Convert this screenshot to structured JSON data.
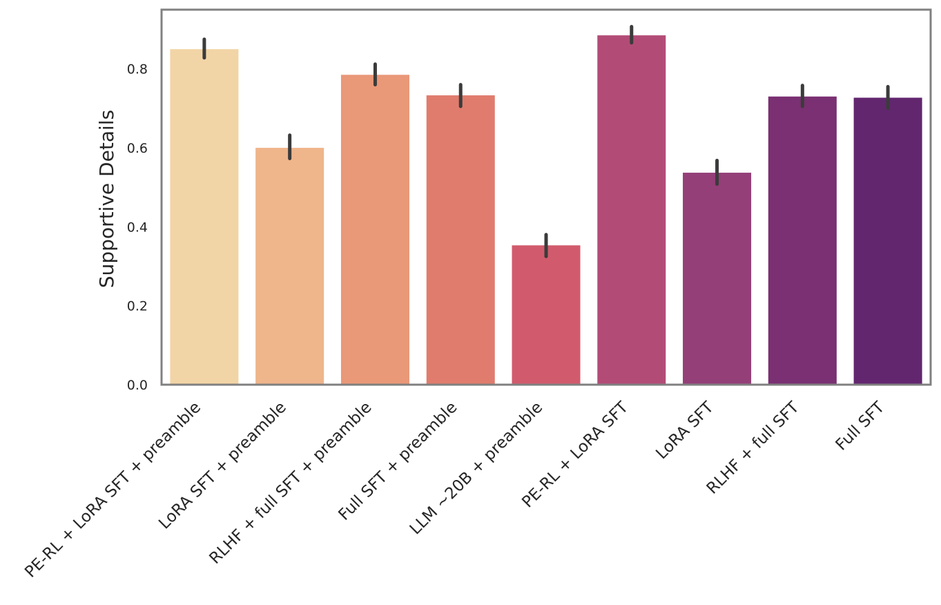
{
  "chart_data": {
    "type": "bar",
    "title": "",
    "xlabel": "",
    "ylabel": "Supportive Details",
    "ylim": [
      0,
      0.95
    ],
    "yticks": [
      0.0,
      0.2,
      0.4,
      0.6,
      0.8
    ],
    "ytick_labels": [
      "0.0",
      "0.2",
      "0.4",
      "0.6",
      "0.8"
    ],
    "grid": false,
    "legend": "none",
    "categories": [
      "PE-RL + LoRA SFT + preamble",
      "LoRA SFT + preamble",
      "RLHF + full SFT + preamble",
      "Full SFT + preamble",
      "LLM ~20B + preamble",
      "PE-RL + LoRA SFT",
      "LoRA SFT",
      "RLHF + full SFT",
      "Full SFT"
    ],
    "values": [
      0.85,
      0.6,
      0.785,
      0.733,
      0.353,
      0.885,
      0.537,
      0.73,
      0.727
    ],
    "error_low": [
      0.828,
      0.573,
      0.76,
      0.705,
      0.325,
      0.866,
      0.508,
      0.705,
      0.7
    ],
    "error_high": [
      0.875,
      0.632,
      0.812,
      0.76,
      0.38,
      0.907,
      0.568,
      0.758,
      0.755
    ],
    "colors": [
      "#f2d5a6",
      "#efb58b",
      "#e99878",
      "#e07c6d",
      "#d15b6c",
      "#b24c77",
      "#943f78",
      "#7a3072",
      "#62266f"
    ],
    "error_color": "#3b3b3b",
    "frame_color": "#808080"
  }
}
